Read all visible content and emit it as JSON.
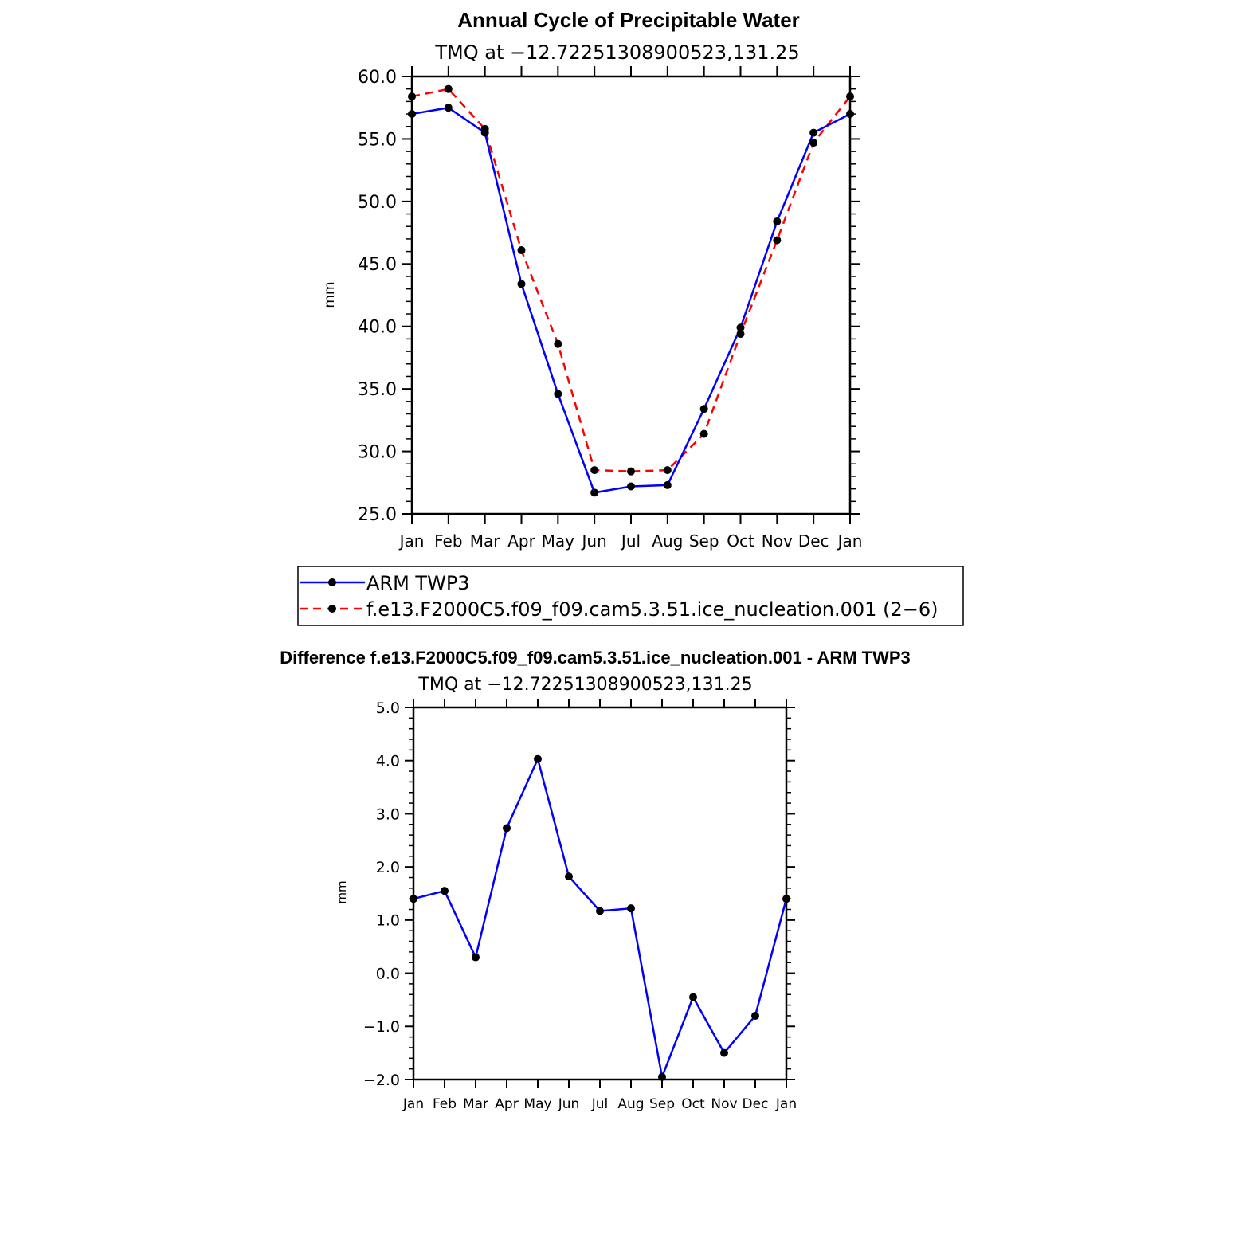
{
  "chart_data": [
    {
      "type": "line",
      "title": "Annual Cycle of Precipitable Water",
      "subtitle": "TMQ at −12.72251308900523,131.25",
      "xlabel": "",
      "ylabel": "mm",
      "categories": [
        "Jan",
        "Feb",
        "Mar",
        "Apr",
        "May",
        "Jun",
        "Jul",
        "Aug",
        "Sep",
        "Oct",
        "Nov",
        "Dec",
        "Jan"
      ],
      "ylim": [
        25.0,
        60.0
      ],
      "yticks": [
        "25.0",
        "30.0",
        "35.0",
        "40.0",
        "45.0",
        "50.0",
        "55.0",
        "60.0"
      ],
      "grid": false,
      "series": [
        {
          "name": "ARM TWP3",
          "color": "#0000ff",
          "dash": "solid",
          "values": [
            57.0,
            57.5,
            55.5,
            43.4,
            34.6,
            26.7,
            27.2,
            27.3,
            33.4,
            39.9,
            48.4,
            55.5,
            57.0
          ]
        },
        {
          "name": "f.e13.F2000C5.f09_f09.cam5.3.51.ice_nucleation.001 (2−6)",
          "color": "#ff0000",
          "dash": "dashed",
          "values": [
            58.4,
            59.0,
            55.8,
            46.1,
            38.6,
            28.5,
            28.4,
            28.5,
            31.4,
            39.4,
            46.9,
            54.7,
            58.4
          ]
        }
      ],
      "legend": "bottom"
    },
    {
      "type": "line",
      "title": "Difference f.e13.F2000C5.f09_f09.cam5.3.51.ice_nucleation.001 - ARM TWP3",
      "subtitle": "TMQ at −12.72251308900523,131.25",
      "xlabel": "",
      "ylabel": "mm",
      "categories": [
        "Jan",
        "Feb",
        "Mar",
        "Apr",
        "May",
        "Jun",
        "Jul",
        "Aug",
        "Sep",
        "Oct",
        "Nov",
        "Dec",
        "Jan"
      ],
      "ylim": [
        -2.0,
        5.0
      ],
      "yticks": [
        "−2.0",
        "−1.0",
        "0.0",
        "1.0",
        "2.0",
        "3.0",
        "4.0",
        "5.0"
      ],
      "grid": false,
      "series": [
        {
          "name": "Difference",
          "color": "#0000ff",
          "dash": "solid",
          "values": [
            1.4,
            1.55,
            0.3,
            2.73,
            4.03,
            1.82,
            1.17,
            1.22,
            -1.95,
            -0.45,
            -1.5,
            -0.8,
            1.4
          ]
        }
      ]
    }
  ]
}
